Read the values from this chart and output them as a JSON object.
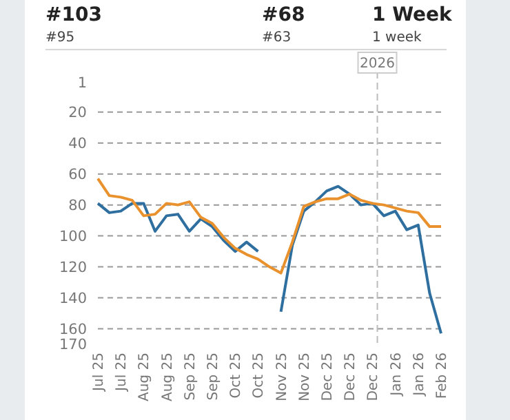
{
  "chart_data": {
    "type": "line",
    "annotations": [
      "#103",
      "#95",
      "#68",
      "#63",
      "1 Week",
      "1 week"
    ],
    "x": [
      "2025-07-14",
      "2025-07-21",
      "2025-07-28",
      "2025-08-04",
      "2025-08-11",
      "2025-08-18",
      "2025-08-25",
      "2025-09-01",
      "2025-09-08",
      "2025-09-15",
      "2025-09-22",
      "2025-09-29",
      "2025-10-06",
      "2025-10-13",
      "2025-10-20",
      "2025-10-27",
      "2025-11-03",
      "2025-11-10",
      "2025-11-17",
      "2025-11-24",
      "2025-12-01",
      "2025-12-08",
      "2025-12-15",
      "2025-12-22",
      "2025-12-29",
      "2026-01-05",
      "2026-01-12",
      "2026-01-19",
      "2026-01-26",
      "2026-02-02",
      "2026-02-09"
    ],
    "series": [
      {
        "color": "#2f6f9f",
        "values": [
          79,
          85,
          84,
          79,
          79,
          97,
          87,
          86,
          97,
          89,
          94,
          103,
          110,
          104,
          110,
          null,
          149,
          106,
          84,
          78,
          71,
          68,
          73,
          80,
          79,
          87,
          84,
          96,
          93,
          137,
          163
        ]
      },
      {
        "color": "#e8912d",
        "values": [
          63,
          74,
          75,
          77,
          87,
          86,
          79,
          80,
          78,
          88,
          92,
          101,
          108,
          112,
          115,
          120,
          124,
          104,
          81,
          78,
          76,
          76,
          73,
          77,
          79,
          80,
          82,
          84,
          85,
          94,
          94
        ]
      }
    ],
    "xlim": [
      "2025-07-14",
      "2026-02-09"
    ],
    "xticks": [
      {
        "value": "2025-07-14",
        "label": "Jul 25"
      },
      {
        "value": "2025-07-28",
        "label": "Jul 25"
      },
      {
        "value": "2025-08-11",
        "label": "Aug 25"
      },
      {
        "value": "2025-08-25",
        "label": "Aug 25"
      },
      {
        "value": "2025-09-08",
        "label": "Sep 25"
      },
      {
        "value": "2025-09-22",
        "label": "Sep 25"
      },
      {
        "value": "2025-10-06",
        "label": "Oct 25"
      },
      {
        "value": "2025-10-20",
        "label": "Oct 25"
      },
      {
        "value": "2025-11-03",
        "label": "Nov 25"
      },
      {
        "value": "2025-11-17",
        "label": "Nov 25"
      },
      {
        "value": "2025-12-01",
        "label": "Dec 25"
      },
      {
        "value": "2025-12-15",
        "label": "Dec 25"
      },
      {
        "value": "2025-12-29",
        "label": "Dec 25"
      },
      {
        "value": "2026-01-12",
        "label": "Jan 26"
      },
      {
        "value": "2026-01-26",
        "label": "Jan 26"
      },
      {
        "value": "2026-02-09",
        "label": "Feb 26"
      }
    ],
    "ylim": [
      170,
      1
    ],
    "yticks": [
      1,
      20,
      40,
      60,
      80,
      100,
      120,
      140,
      160,
      170
    ],
    "ref_lines": [
      {
        "axis": "x",
        "value": "2026-01-01",
        "label": "2026",
        "line_style": "dashed"
      }
    ],
    "grid": "y",
    "line_style": "solid",
    "marker": "none"
  }
}
